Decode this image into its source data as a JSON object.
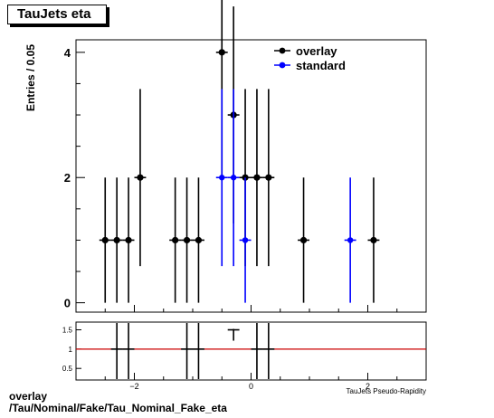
{
  "title": "TauJets eta",
  "footer": {
    "line1": "overlay",
    "line2": "/Tau/Nominal/Fake/Tau_Nominal_Fake_eta"
  },
  "chart_data": {
    "type": "scatter",
    "title": "TauJets eta",
    "xlabel": "TauJets Pseudo-Rapidity",
    "ylabel": "Entries / 0.05",
    "xlim": [
      -3,
      3
    ],
    "ylim": [
      -0.15,
      4.2
    ],
    "ratio_ylim": [
      0.2,
      1.7
    ],
    "legend_position": "top-right",
    "y_ticks": [
      0,
      2,
      4
    ],
    "x_ticks": [
      -2,
      0,
      2
    ],
    "ratio_y_ticks": [
      0.5,
      1,
      1.5
    ],
    "colors": {
      "overlay": "#000000",
      "standard": "#0000ff",
      "ratio_line": "#cc0000"
    },
    "series": [
      {
        "name": "overlay",
        "x_err": 0.1,
        "points": [
          {
            "x": -2.5,
            "y": 1
          },
          {
            "x": -2.3,
            "y": 1
          },
          {
            "x": -2.1,
            "y": 1
          },
          {
            "x": -1.9,
            "y": 2
          },
          {
            "x": -1.3,
            "y": 1
          },
          {
            "x": -1.1,
            "y": 1
          },
          {
            "x": -0.9,
            "y": 1
          },
          {
            "x": -0.5,
            "y": 4
          },
          {
            "x": -0.3,
            "y": 3
          },
          {
            "x": -0.1,
            "y": 2
          },
          {
            "x": 0.1,
            "y": 2
          },
          {
            "x": 0.3,
            "y": 2
          },
          {
            "x": 0.9,
            "y": 1
          },
          {
            "x": 2.1,
            "y": 1
          }
        ]
      },
      {
        "name": "standard",
        "x_err": 0.1,
        "points": [
          {
            "x": -0.5,
            "y": 2
          },
          {
            "x": -0.3,
            "y": 2
          },
          {
            "x": -0.1,
            "y": 1
          },
          {
            "x": 1.7,
            "y": 1
          }
        ]
      }
    ],
    "ratio": {
      "line_y": 1,
      "points": [
        {
          "x": -2.3,
          "y": 1
        },
        {
          "x": -2.1,
          "y": 1
        },
        {
          "x": -1.1,
          "y": 1
        },
        {
          "x": -0.9,
          "y": 1
        },
        {
          "x": -0.3,
          "y": 1.5
        },
        {
          "x": 0.1,
          "y": 1
        },
        {
          "x": 0.3,
          "y": 1
        }
      ]
    }
  }
}
